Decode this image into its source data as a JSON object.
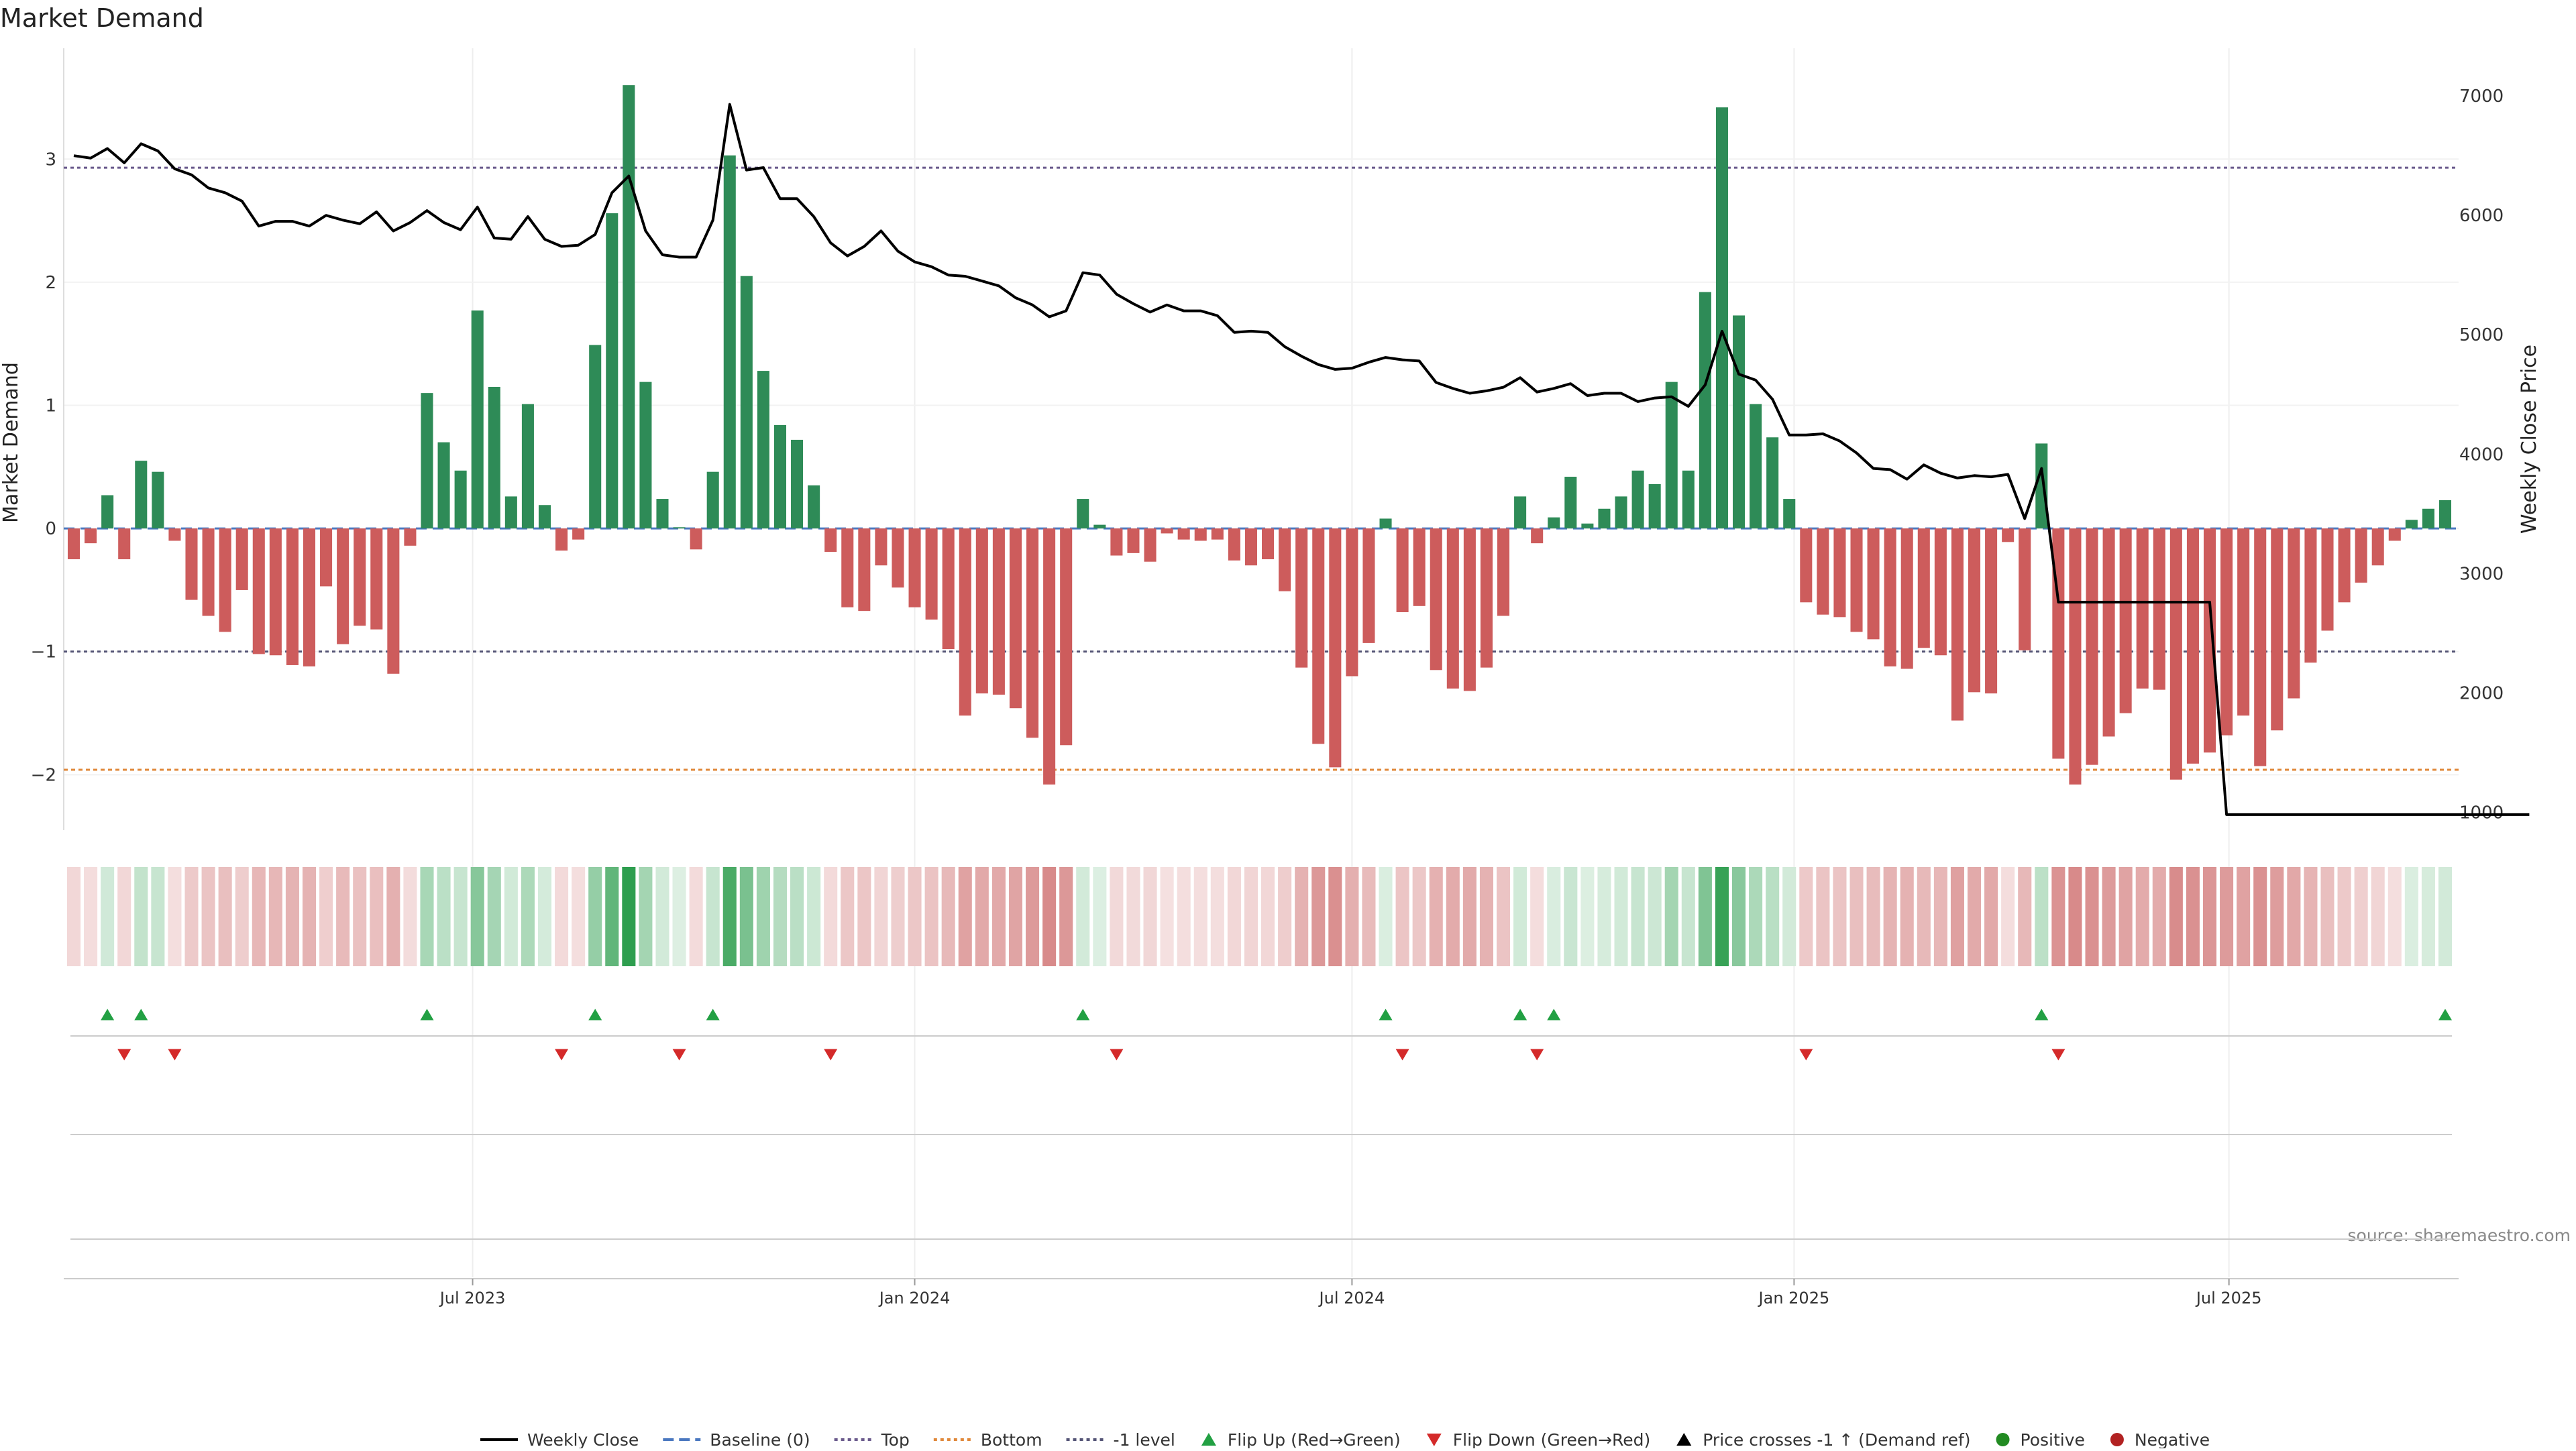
{
  "chart_data": {
    "type": "bar",
    "title": "Market Demand",
    "ylabel": "Market Demand",
    "y2label": "Weekly Close Price",
    "ylim": [
      -2.45,
      3.9
    ],
    "y2lim": [
      850,
      7400
    ],
    "yticks": [
      -2,
      -1,
      0,
      1,
      2,
      3
    ],
    "y2ticks": [
      1000,
      2000,
      3000,
      4000,
      5000,
      6000,
      7000
    ],
    "x_start": "2023-01-16",
    "x_step_days": 7,
    "xticks": [
      {
        "date": "2023-07-01",
        "label": "Jul 2023"
      },
      {
        "date": "2024-01-01",
        "label": "Jan 2024"
      },
      {
        "date": "2024-07-01",
        "label": "Jul 2024"
      },
      {
        "date": "2025-01-01",
        "label": "Jan 2025"
      },
      {
        "date": "2025-07-01",
        "label": "Jul 2025"
      }
    ],
    "levels": {
      "top": 2.93,
      "minus_one": -1.0,
      "bottom": -1.96,
      "baseline": 0
    },
    "colors": {
      "positive": "#2e8b57",
      "negative": "#cd5c5c",
      "price": "#000000",
      "top": "#6a5a8c",
      "minus_one": "#555577",
      "bottom": "#e0883a",
      "baseline": "#4a78c0",
      "flip_up": "#22a043",
      "flip_down": "#d42a2a",
      "dot_positive": "#228b22",
      "dot_negative": "#b22222"
    },
    "demand": [
      -0.25,
      -0.12,
      0.27,
      -0.25,
      0.55,
      0.46,
      -0.1,
      -0.58,
      -0.71,
      -0.84,
      -0.5,
      -1.02,
      -1.03,
      -1.11,
      -1.12,
      -0.47,
      -0.94,
      -0.79,
      -0.82,
      -1.18,
      -0.14,
      1.1,
      0.7,
      0.47,
      1.77,
      1.15,
      0.26,
      1.01,
      0.19,
      -0.18,
      -0.09,
      1.49,
      2.56,
      3.6,
      1.19,
      0.24,
      0.01,
      -0.17,
      0.46,
      3.03,
      2.05,
      1.28,
      0.84,
      0.72,
      0.35,
      -0.19,
      -0.64,
      -0.67,
      -0.3,
      -0.48,
      -0.64,
      -0.74,
      -0.98,
      -1.52,
      -1.34,
      -1.35,
      -1.46,
      -1.7,
      -2.08,
      -1.76,
      0.24,
      0.03,
      -0.22,
      -0.2,
      -0.27,
      -0.04,
      -0.09,
      -0.1,
      -0.09,
      -0.26,
      -0.3,
      -0.25,
      -0.51,
      -1.13,
      -1.75,
      -1.94,
      -1.2,
      -0.93,
      0.08,
      -0.68,
      -0.63,
      -1.15,
      -1.3,
      -1.32,
      -1.13,
      -0.71,
      0.26,
      -0.12,
      0.09,
      0.42,
      0.04,
      0.16,
      0.26,
      0.47,
      0.36,
      1.19,
      0.47,
      1.92,
      3.42,
      1.73,
      1.01,
      0.74,
      0.24,
      -0.6,
      -0.7,
      -0.72,
      -0.84,
      -0.9,
      -1.12,
      -1.14,
      -0.97,
      -1.03,
      -1.56,
      -1.33,
      -1.34,
      -0.11,
      -0.99,
      0.69,
      -1.87,
      -2.08,
      -1.92,
      -1.69,
      -1.5,
      -1.3,
      -1.31,
      -2.04,
      -1.91,
      -1.82,
      -1.68,
      -1.52,
      -1.93,
      -1.64,
      -1.38,
      -1.09,
      -0.83,
      -0.6,
      -0.44,
      -0.3,
      -0.1,
      0.07,
      0.16,
      0.23
    ],
    "price": [
      6500,
      6480,
      6560,
      6440,
      6600,
      6540,
      6390,
      6340,
      6230,
      6190,
      6120,
      5910,
      5950,
      5950,
      5910,
      6000,
      5960,
      5930,
      6030,
      5870,
      5940,
      6040,
      5940,
      5880,
      6070,
      5810,
      5800,
      5990,
      5800,
      5740,
      5750,
      5840,
      6190,
      6330,
      5870,
      5670,
      5650,
      5650,
      5960,
      6930,
      6380,
      6400,
      6140,
      6140,
      5990,
      5770,
      5660,
      5740,
      5870,
      5700,
      5610,
      5570,
      5500,
      5490,
      5450,
      5410,
      5310,
      5250,
      5150,
      5200,
      5520,
      5500,
      5340,
      5260,
      5190,
      5250,
      5200,
      5200,
      5160,
      5020,
      5030,
      5020,
      4900,
      4820,
      4750,
      4710,
      4720,
      4770,
      4810,
      4790,
      4780,
      4600,
      4550,
      4510,
      4530,
      4560,
      4640,
      4520,
      4550,
      4590,
      4490,
      4510,
      4510,
      4440,
      4470,
      4480,
      4400,
      4580,
      5030,
      4670,
      4620,
      4460,
      4160,
      4160,
      4170,
      4110,
      4010,
      3880,
      3870,
      3790,
      3910,
      3840,
      3800,
      3820,
      3810,
      3830,
      3460,
      3880,
      2760,
      2760,
      2760,
      2760,
      2760,
      2760,
      2760,
      2760,
      2760,
      2760,
      980,
      980,
      980,
      980,
      980,
      980,
      980,
      980,
      980,
      980,
      980,
      980,
      980,
      980,
      980,
      980,
      980,
      980,
      980
    ],
    "flip_up_weeks": [
      2,
      4,
      21,
      31,
      38,
      60,
      78,
      86,
      88,
      117,
      141
    ],
    "flip_down_weeks": [
      3,
      6,
      29,
      36,
      45,
      62,
      79,
      87,
      103,
      118
    ],
    "annotations": [
      {
        "text": "source: sharemaestro.com"
      }
    ],
    "legend_position": "bottom-center"
  },
  "legend": {
    "items": [
      {
        "label": "Weekly Close",
        "type": "line",
        "color": "#000000"
      },
      {
        "label": "Baseline (0)",
        "type": "dash",
        "color": "#4a78c0"
      },
      {
        "label": "Top",
        "type": "dot",
        "color": "#6a5a8c"
      },
      {
        "label": "Bottom",
        "type": "dot",
        "color": "#e0883a"
      },
      {
        "label": "-1 level",
        "type": "dot",
        "color": "#555577"
      },
      {
        "label": "Flip Up (Red→Green)",
        "type": "tri-up",
        "color": "#22a043"
      },
      {
        "label": "Flip Down (Green→Red)",
        "type": "tri-down",
        "color": "#d42a2a"
      },
      {
        "label": "Price crosses -1 ↑ (Demand ref)",
        "type": "tri-up",
        "color": "#000000"
      },
      {
        "label": "Positive",
        "type": "circle",
        "color": "#228b22"
      },
      {
        "label": "Negative",
        "type": "circle",
        "color": "#b22222"
      }
    ]
  }
}
